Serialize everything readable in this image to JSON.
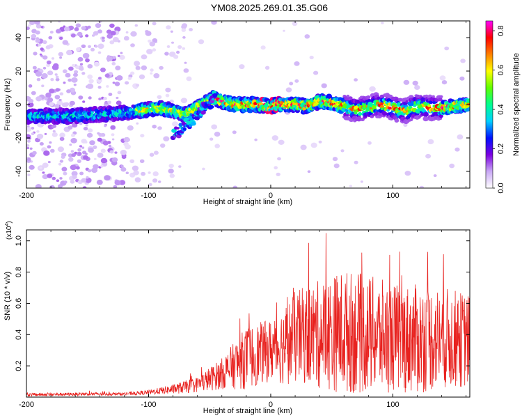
{
  "title": "YM08.2025.269.01.35.G06",
  "chart_data": [
    {
      "type": "heatmap",
      "name": "spectrogram",
      "xlabel": "Height of straight line (km)",
      "ylabel": "Frequency (Hz)",
      "xlim": [
        -200,
        163
      ],
      "ylim": [
        -50,
        50
      ],
      "xticks": [
        -200,
        -100,
        0,
        100
      ],
      "xtick_labels": [
        "-200",
        "-100",
        "0",
        "100"
      ],
      "yticks": [
        -40,
        -20,
        0,
        20,
        40
      ],
      "ytick_labels": [
        "-40",
        "-20",
        "0",
        "20",
        "40"
      ],
      "colorbar": {
        "label": "Normalized spectral amplitude",
        "range": [
          0.0,
          0.85
        ],
        "ticks": [
          0.0,
          0.2,
          0.4,
          0.6,
          0.8
        ],
        "tick_labels": [
          "0.0",
          "0.2",
          "0.4",
          "0.6",
          "0.8"
        ],
        "colormap": [
          "#ffffff",
          "#c9a8f5",
          "#7b00e0",
          "#0010ff",
          "#00d0ff",
          "#00ff90",
          "#60ff00",
          "#ffff00",
          "#ff8000",
          "#ff0000",
          "#ff00ff"
        ]
      },
      "ridge": {
        "x": [
          -185,
          -160,
          -140,
          -120,
          -100,
          -90,
          -80,
          -70,
          -60,
          -50,
          -45,
          -40,
          -30,
          -20,
          -10,
          0,
          10,
          20,
          30,
          40,
          50,
          60,
          70,
          80,
          90,
          100,
          110,
          120,
          130,
          140,
          150,
          163
        ],
        "freq": [
          -7,
          -7,
          -6,
          -5,
          -3,
          -2,
          -4,
          -6,
          -2,
          2,
          3,
          2,
          0,
          0,
          0,
          -1,
          0,
          0,
          -1,
          2,
          1,
          -1,
          -3,
          -2,
          0,
          -2,
          -4,
          -1,
          -2,
          -2,
          -1,
          0
        ]
      },
      "secondary_track": {
        "x": [
          -80,
          -75,
          -70,
          -65,
          -60,
          -55,
          -50,
          -45
        ],
        "freq": [
          -18,
          -16,
          -12,
          -10,
          -6,
          -2,
          3,
          6
        ]
      }
    },
    {
      "type": "line",
      "name": "snr",
      "color": "#e8221f",
      "xlabel": "Height of straight line (km)",
      "ylabel": "SNR (10 * v/v)",
      "exponent_label": "(x10",
      "exponent": "4",
      "exponent_close": ")",
      "xlim": [
        -200,
        163
      ],
      "ylim": [
        0,
        1.07
      ],
      "xticks": [
        -200,
        -100,
        0,
        100
      ],
      "xtick_labels": [
        "-200",
        "-100",
        "0",
        "100"
      ],
      "yticks": [
        0.2,
        0.4,
        0.6,
        0.8,
        1.0
      ],
      "ytick_labels": [
        "0.2",
        "0.4",
        "0.6",
        "0.8",
        "1.0"
      ],
      "envelope": {
        "x": [
          -200,
          -150,
          -120,
          -100,
          -80,
          -60,
          -40,
          -20,
          0,
          10,
          20,
          30,
          40,
          60,
          80,
          100,
          120,
          140,
          163
        ],
        "mean": [
          0.015,
          0.02,
          0.02,
          0.03,
          0.05,
          0.08,
          0.15,
          0.25,
          0.3,
          0.33,
          0.38,
          0.4,
          0.4,
          0.42,
          0.4,
          0.38,
          0.37,
          0.38,
          0.36
        ],
        "spread": [
          0.01,
          0.01,
          0.01,
          0.015,
          0.03,
          0.05,
          0.1,
          0.2,
          0.2,
          0.25,
          0.3,
          0.32,
          0.35,
          0.4,
          0.38,
          0.35,
          0.35,
          0.33,
          0.3
        ]
      }
    }
  ]
}
